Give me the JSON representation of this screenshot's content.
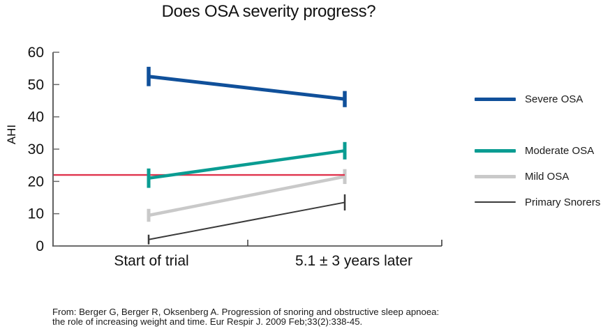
{
  "chart_data": {
    "type": "line",
    "title": "Does OSA severity progress?",
    "ylabel": "AHI",
    "xlabel": "",
    "ylim": [
      0,
      60
    ],
    "yticks": [
      0,
      10,
      20,
      30,
      40,
      50,
      60
    ],
    "categories": [
      "Start of trial",
      "5.1 ± 3 years later"
    ],
    "series": [
      {
        "name": "Severe OSA",
        "color": "#10509a",
        "values": [
          52.5,
          45.5
        ],
        "errors": [
          3.0,
          2.5
        ]
      },
      {
        "name": "Moderate OSA",
        "color": "#0a9c92",
        "values": [
          21.0,
          29.5
        ],
        "errors": [
          3.0,
          2.7
        ]
      },
      {
        "name": "Mild OSA",
        "color": "#c9c9c9",
        "values": [
          9.5,
          21.5
        ],
        "errors": [
          2.0,
          2.3
        ]
      },
      {
        "name": "Primary Snorers",
        "color": "#3a3a3a",
        "values": [
          2.0,
          13.5
        ],
        "errors": [
          1.5,
          2.5
        ]
      }
    ],
    "reference_line": {
      "value": 22,
      "color": "#e0344e"
    },
    "legend_position": "right",
    "grid": false
  },
  "citation": {
    "line1": "From: Berger G, Berger R, Oksenberg A. Progression of snoring and obstructive sleep apnoea:",
    "line2": "the role of increasing weight and time. Eur Respir J. 2009 Feb;33(2):338-45."
  }
}
